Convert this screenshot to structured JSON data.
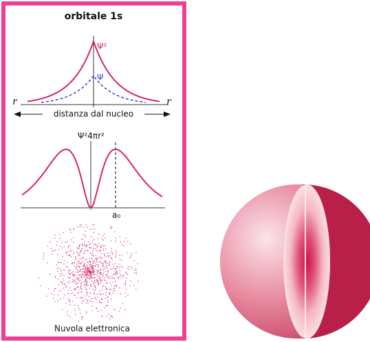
{
  "panel": {
    "title": "orbitale 1s",
    "plot1": {
      "psi2_label": "Ψ²",
      "psi_label": "Ψ",
      "r_left": "r",
      "r_right": "r",
      "axis_label": "distanza dal nucleo"
    },
    "plot2": {
      "y_label": "Ψ²4πr²",
      "a0_label": "a₀"
    },
    "cloud_label": "Nuvola elettronica"
  }
}
